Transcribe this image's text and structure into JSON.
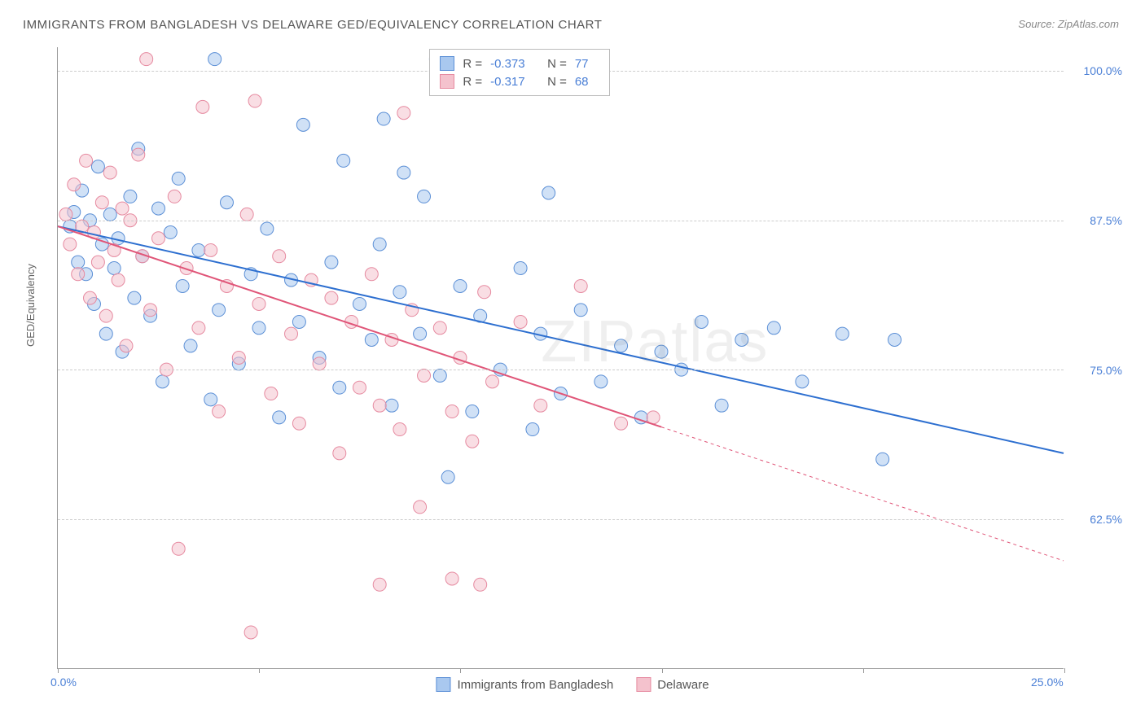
{
  "title": "IMMIGRANTS FROM BANGLADESH VS DELAWARE GED/EQUIVALENCY CORRELATION CHART",
  "source_label": "Source:",
  "source_value": "ZipAtlas.com",
  "watermark": "ZIPatlas",
  "y_axis_label": "GED/Equivalency",
  "chart": {
    "type": "scatter",
    "background_color": "#ffffff",
    "grid_color": "#cccccc",
    "grid_dash": "4,4",
    "xlim": [
      0,
      25
    ],
    "ylim": [
      50,
      102
    ],
    "xticks": [
      0,
      5,
      10,
      15,
      20,
      25
    ],
    "xtick_labels": [
      "0.0%",
      "",
      "",
      "",
      "",
      "25.0%"
    ],
    "yticks": [
      62.5,
      75.0,
      87.5,
      100.0
    ],
    "ytick_labels": [
      "62.5%",
      "75.0%",
      "87.5%",
      "100.0%"
    ],
    "tick_label_color": "#4a7fd6",
    "tick_label_fontsize": 14,
    "axis_label_color": "#666666",
    "axis_color": "#999999",
    "marker_radius": 8,
    "marker_opacity": 0.55,
    "line_width": 2,
    "series": [
      {
        "name": "Immigrants from Bangladesh",
        "color_fill": "#a9c8ef",
        "color_stroke": "#5b8fd6",
        "line_color": "#2d6fd0",
        "r_value": "-0.373",
        "n_value": "77",
        "trend": {
          "x1": 0,
          "y1": 87.0,
          "x2": 25,
          "y2": 68.0,
          "dash_from_x": null
        },
        "points": [
          [
            0.3,
            87.0
          ],
          [
            0.4,
            88.2
          ],
          [
            0.5,
            84.0
          ],
          [
            0.6,
            90.0
          ],
          [
            0.7,
            83.0
          ],
          [
            0.8,
            87.5
          ],
          [
            0.9,
            80.5
          ],
          [
            1.0,
            92.0
          ],
          [
            1.1,
            85.5
          ],
          [
            1.2,
            78.0
          ],
          [
            1.3,
            88.0
          ],
          [
            1.4,
            83.5
          ],
          [
            1.5,
            86.0
          ],
          [
            1.6,
            76.5
          ],
          [
            1.8,
            89.5
          ],
          [
            1.9,
            81.0
          ],
          [
            2.0,
            93.5
          ],
          [
            2.1,
            84.5
          ],
          [
            2.3,
            79.5
          ],
          [
            2.5,
            88.5
          ],
          [
            2.6,
            74.0
          ],
          [
            2.8,
            86.5
          ],
          [
            3.0,
            91.0
          ],
          [
            3.1,
            82.0
          ],
          [
            3.3,
            77.0
          ],
          [
            3.5,
            85.0
          ],
          [
            3.8,
            72.5
          ],
          [
            3.9,
            101.0
          ],
          [
            4.0,
            80.0
          ],
          [
            4.2,
            89.0
          ],
          [
            4.5,
            75.5
          ],
          [
            4.8,
            83.0
          ],
          [
            5.0,
            78.5
          ],
          [
            5.2,
            86.8
          ],
          [
            5.5,
            71.0
          ],
          [
            5.8,
            82.5
          ],
          [
            6.0,
            79.0
          ],
          [
            6.1,
            95.5
          ],
          [
            6.5,
            76.0
          ],
          [
            6.8,
            84.0
          ],
          [
            7.0,
            73.5
          ],
          [
            7.1,
            92.5
          ],
          [
            7.5,
            80.5
          ],
          [
            7.8,
            77.5
          ],
          [
            8.0,
            85.5
          ],
          [
            8.1,
            96.0
          ],
          [
            8.3,
            72.0
          ],
          [
            8.5,
            81.5
          ],
          [
            8.6,
            91.5
          ],
          [
            9.0,
            78.0
          ],
          [
            9.1,
            89.5
          ],
          [
            9.4,
            101.0
          ],
          [
            9.5,
            74.5
          ],
          [
            9.7,
            66.0
          ],
          [
            10.0,
            82.0
          ],
          [
            10.3,
            71.5
          ],
          [
            10.5,
            79.5
          ],
          [
            11.0,
            75.0
          ],
          [
            11.5,
            83.5
          ],
          [
            11.8,
            70.0
          ],
          [
            12.0,
            78.0
          ],
          [
            12.2,
            89.8
          ],
          [
            12.5,
            73.0
          ],
          [
            13.0,
            80.0
          ],
          [
            13.5,
            74.0
          ],
          [
            14.0,
            77.0
          ],
          [
            14.5,
            71.0
          ],
          [
            15.0,
            76.5
          ],
          [
            15.5,
            75.0
          ],
          [
            16.0,
            79.0
          ],
          [
            16.5,
            72.0
          ],
          [
            17.0,
            77.5
          ],
          [
            17.8,
            78.5
          ],
          [
            18.5,
            74.0
          ],
          [
            19.5,
            78.0
          ],
          [
            20.5,
            67.5
          ],
          [
            20.8,
            77.5
          ]
        ]
      },
      {
        "name": "Delaware",
        "color_fill": "#f4c2cd",
        "color_stroke": "#e68aa0",
        "line_color": "#e05578",
        "r_value": "-0.317",
        "n_value": "68",
        "trend": {
          "x1": 0,
          "y1": 87.0,
          "x2": 25,
          "y2": 59.0,
          "dash_from_x": 15
        },
        "points": [
          [
            0.2,
            88.0
          ],
          [
            0.3,
            85.5
          ],
          [
            0.4,
            90.5
          ],
          [
            0.5,
            83.0
          ],
          [
            0.6,
            87.0
          ],
          [
            0.7,
            92.5
          ],
          [
            0.8,
            81.0
          ],
          [
            0.9,
            86.5
          ],
          [
            1.0,
            84.0
          ],
          [
            1.1,
            89.0
          ],
          [
            1.2,
            79.5
          ],
          [
            1.3,
            91.5
          ],
          [
            1.4,
            85.0
          ],
          [
            1.5,
            82.5
          ],
          [
            1.6,
            88.5
          ],
          [
            1.7,
            77.0
          ],
          [
            1.8,
            87.5
          ],
          [
            2.0,
            93.0
          ],
          [
            2.1,
            84.5
          ],
          [
            2.2,
            101.0
          ],
          [
            2.3,
            80.0
          ],
          [
            2.5,
            86.0
          ],
          [
            2.7,
            75.0
          ],
          [
            2.9,
            89.5
          ],
          [
            3.0,
            60.0
          ],
          [
            3.2,
            83.5
          ],
          [
            3.5,
            78.5
          ],
          [
            3.6,
            97.0
          ],
          [
            3.8,
            85.0
          ],
          [
            4.0,
            71.5
          ],
          [
            4.2,
            82.0
          ],
          [
            4.5,
            76.0
          ],
          [
            4.7,
            88.0
          ],
          [
            4.8,
            53.0
          ],
          [
            4.9,
            97.5
          ],
          [
            5.0,
            80.5
          ],
          [
            5.3,
            73.0
          ],
          [
            5.5,
            84.5
          ],
          [
            5.8,
            78.0
          ],
          [
            6.0,
            70.5
          ],
          [
            6.3,
            82.5
          ],
          [
            6.5,
            75.5
          ],
          [
            6.8,
            81.0
          ],
          [
            7.0,
            68.0
          ],
          [
            7.3,
            79.0
          ],
          [
            7.5,
            73.5
          ],
          [
            7.8,
            83.0
          ],
          [
            8.0,
            57.0
          ],
          [
            8.0,
            72.0
          ],
          [
            8.3,
            77.5
          ],
          [
            8.5,
            70.0
          ],
          [
            8.6,
            96.5
          ],
          [
            8.8,
            80.0
          ],
          [
            9.0,
            63.5
          ],
          [
            9.1,
            74.5
          ],
          [
            9.5,
            78.5
          ],
          [
            9.8,
            71.5
          ],
          [
            9.8,
            57.5
          ],
          [
            10.0,
            76.0
          ],
          [
            10.3,
            69.0
          ],
          [
            10.5,
            57.0
          ],
          [
            10.6,
            81.5
          ],
          [
            10.8,
            74.0
          ],
          [
            11.5,
            79.0
          ],
          [
            12.0,
            72.0
          ],
          [
            13.0,
            82.0
          ],
          [
            14.0,
            70.5
          ],
          [
            14.8,
            71.0
          ]
        ]
      }
    ]
  },
  "legend_labels": {
    "r": "R =",
    "n": "N ="
  }
}
